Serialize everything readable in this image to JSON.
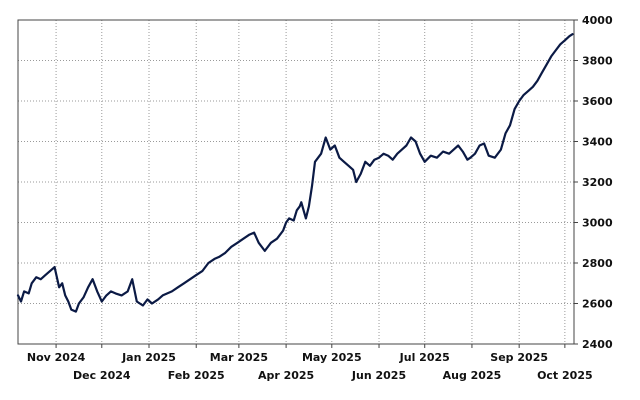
{
  "chart_data": {
    "type": "line",
    "title": "",
    "xlabel": "",
    "ylabel": "",
    "grid": true,
    "ylim": [
      2400,
      4000
    ],
    "yticks": [
      2400,
      2600,
      2800,
      3000,
      3200,
      3400,
      3600,
      3800,
      4000
    ],
    "xlim": [
      "2024-10-07",
      "2025-10-07"
    ],
    "xticks": [
      {
        "date": "2024-11-01",
        "label": "Nov 2024"
      },
      {
        "date": "2024-12-01",
        "label": "Dec 2024"
      },
      {
        "date": "2025-01-01",
        "label": "Jan 2025"
      },
      {
        "date": "2025-02-01",
        "label": "Feb 2025"
      },
      {
        "date": "2025-03-01",
        "label": "Mar 2025"
      },
      {
        "date": "2025-04-01",
        "label": "Apr 2025"
      },
      {
        "date": "2025-05-01",
        "label": "May 2025"
      },
      {
        "date": "2025-06-01",
        "label": "Jun 2025"
      },
      {
        "date": "2025-07-01",
        "label": "Jul 2025"
      },
      {
        "date": "2025-08-01",
        "label": "Aug 2025"
      },
      {
        "date": "2025-09-01",
        "label": "Sep 2025"
      },
      {
        "date": "2025-10-01",
        "label": "Oct 2025"
      }
    ],
    "line_color": "#0b1a45",
    "series": [
      {
        "x": [
          "2024-10-07",
          "2024-10-09",
          "2024-10-11",
          "2024-10-14",
          "2024-10-16",
          "2024-10-19",
          "2024-10-22",
          "2024-10-25",
          "2024-10-28",
          "2024-10-31",
          "2024-11-03",
          "2024-11-05",
          "2024-11-07",
          "2024-11-09",
          "2024-11-11",
          "2024-11-14",
          "2024-11-16",
          "2024-11-19",
          "2024-11-22",
          "2024-11-25",
          "2024-11-28",
          "2024-12-01",
          "2024-12-04",
          "2024-12-07",
          "2024-12-10",
          "2024-12-14",
          "2024-12-18",
          "2024-12-21",
          "2024-12-24",
          "2024-12-28",
          "2024-12-31",
          "2025-01-03",
          "2025-01-07",
          "2025-01-10",
          "2025-01-13",
          "2025-01-16",
          "2025-01-20",
          "2025-01-24",
          "2025-01-28",
          "2025-02-01",
          "2025-02-05",
          "2025-02-09",
          "2025-02-13",
          "2025-02-16",
          "2025-02-20",
          "2025-02-24",
          "2025-02-28",
          "2025-03-04",
          "2025-03-08",
          "2025-03-11",
          "2025-03-14",
          "2025-03-18",
          "2025-03-22",
          "2025-03-26",
          "2025-03-30",
          "2025-04-01",
          "2025-04-03",
          "2025-04-06",
          "2025-04-08",
          "2025-04-10",
          "2025-04-11",
          "2025-04-14",
          "2025-04-16",
          "2025-04-18",
          "2025-04-20",
          "2025-04-22",
          "2025-04-24",
          "2025-04-27",
          "2025-04-30",
          "2025-05-03",
          "2025-05-06",
          "2025-05-09",
          "2025-05-12",
          "2025-05-15",
          "2025-05-17",
          "2025-05-20",
          "2025-05-23",
          "2025-05-26",
          "2025-05-29",
          "2025-06-01",
          "2025-06-04",
          "2025-06-07",
          "2025-06-10",
          "2025-06-13",
          "2025-06-16",
          "2025-06-19",
          "2025-06-22",
          "2025-06-25",
          "2025-06-28",
          "2025-07-01",
          "2025-07-05",
          "2025-07-09",
          "2025-07-13",
          "2025-07-17",
          "2025-07-20",
          "2025-07-23",
          "2025-07-26",
          "2025-07-29",
          "2025-07-31",
          "2025-08-03",
          "2025-08-06",
          "2025-08-09",
          "2025-08-12",
          "2025-08-16",
          "2025-08-20",
          "2025-08-23",
          "2025-08-26",
          "2025-08-29",
          "2025-09-01",
          "2025-09-04",
          "2025-09-07",
          "2025-09-10",
          "2025-09-13",
          "2025-09-16",
          "2025-09-19",
          "2025-09-22",
          "2025-09-25",
          "2025-09-28",
          "2025-10-01",
          "2025-10-04",
          "2025-10-06"
        ],
        "values": [
          2640,
          2610,
          2660,
          2650,
          2700,
          2730,
          2720,
          2740,
          2760,
          2780,
          2680,
          2700,
          2640,
          2610,
          2570,
          2560,
          2600,
          2630,
          2680,
          2720,
          2660,
          2610,
          2640,
          2660,
          2650,
          2640,
          2660,
          2720,
          2610,
          2590,
          2620,
          2600,
          2620,
          2640,
          2650,
          2660,
          2680,
          2700,
          2720,
          2740,
          2760,
          2800,
          2820,
          2830,
          2850,
          2880,
          2900,
          2920,
          2940,
          2950,
          2900,
          2860,
          2900,
          2920,
          2960,
          3000,
          3020,
          3010,
          3060,
          3080,
          3100,
          3020,
          3080,
          3180,
          3300,
          3320,
          3340,
          3420,
          3360,
          3380,
          3320,
          3300,
          3280,
          3260,
          3200,
          3240,
          3300,
          3280,
          3310,
          3320,
          3340,
          3330,
          3310,
          3340,
          3360,
          3380,
          3420,
          3400,
          3340,
          3300,
          3330,
          3320,
          3350,
          3340,
          3360,
          3380,
          3350,
          3310,
          3320,
          3340,
          3380,
          3390,
          3330,
          3320,
          3360,
          3440,
          3480,
          3560,
          3600,
          3630,
          3650,
          3670,
          3700,
          3740,
          3780,
          3820,
          3850,
          3880,
          3900,
          3920,
          3930
        ]
      }
    ]
  }
}
